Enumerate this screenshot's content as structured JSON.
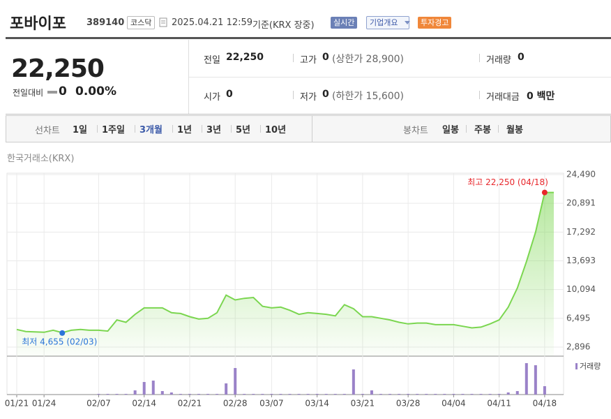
{
  "header": {
    "name": "포바이포",
    "code": "389140",
    "market": "코스닥",
    "datetime": "2025.04.21 12:59",
    "basis": "기준(KRX 장중)",
    "buttons": [
      "실시간",
      "기업개요",
      "투자경고"
    ]
  },
  "summary": {
    "price": "22,250",
    "change_label": "전일대비",
    "change": "0",
    "change_rate": "0.00%",
    "rows": [
      [
        {
          "label": "전일",
          "value": "22,250"
        },
        {
          "label": "고가",
          "value": "0",
          "note": "(상한가 28,900)"
        },
        {
          "label": "거래량",
          "value": "0"
        }
      ],
      [
        {
          "label": "시가",
          "value": "0"
        },
        {
          "label": "저가",
          "value": "0",
          "note": "(하한가 15,600)"
        },
        {
          "label": "거래대금",
          "value": "0 백만"
        }
      ]
    ]
  },
  "tabs": {
    "line_label": "선차트",
    "line_periods": [
      "1일",
      "1주일",
      "3개월",
      "1년",
      "3년",
      "5년",
      "10년"
    ],
    "selected": "3개월",
    "candle_label": "봉차트",
    "candle_periods": [
      "일봉",
      "주봉",
      "월봉"
    ]
  },
  "chart_data": {
    "type": "line",
    "source": "한국거래소(KRX)",
    "categories": [
      "01/21",
      null,
      null,
      "01/24",
      null,
      null,
      null,
      null,
      null,
      "02/07",
      null,
      null,
      null,
      null,
      "02/14",
      null,
      null,
      null,
      null,
      "02/21",
      null,
      null,
      null,
      null,
      "02/28",
      null,
      null,
      null,
      "03/07",
      null,
      null,
      null,
      null,
      "03/14",
      null,
      null,
      null,
      null,
      "03/21",
      null,
      null,
      null,
      null,
      "03/28",
      null,
      null,
      null,
      null,
      "04/04",
      null,
      null,
      null,
      null,
      "04/11",
      null,
      null,
      null,
      null,
      "04/18",
      null
    ],
    "values": [
      5100,
      4850,
      4800,
      4750,
      5000,
      4700,
      5000,
      5100,
      5000,
      5000,
      4900,
      6300,
      6000,
      7000,
      7800,
      7800,
      7800,
      7200,
      7100,
      6700,
      6400,
      6500,
      7200,
      9400,
      8800,
      9000,
      9100,
      8000,
      7800,
      7900,
      7500,
      7000,
      7200,
      7100,
      7000,
      6800,
      8200,
      7700,
      6700,
      6700,
      6500,
      6300,
      6000,
      5800,
      5900,
      5900,
      5700,
      5700,
      5700,
      5500,
      5300,
      5400,
      5800,
      6300,
      7900,
      10300,
      13600,
      17300,
      22250,
      22250
    ],
    "color": "#7bd650",
    "ylim": [
      1760,
      24490
    ],
    "yticks": [
      {
        "value": 2896,
        "label": "2,896"
      },
      {
        "value": 6495,
        "label": "6,495"
      },
      {
        "value": 10094,
        "label": "10,094"
      },
      {
        "value": 13693,
        "label": "13,693"
      },
      {
        "value": 17292,
        "label": "17,292"
      },
      {
        "value": 20891,
        "label": "20,891"
      },
      {
        "value": 24490,
        "label": "24,490"
      }
    ],
    "grid": true,
    "annotations": [
      {
        "text": "최고 22,250 (04/18)",
        "value": 22250,
        "kind": "max",
        "color": "#e8262b"
      },
      {
        "text": "최저 4,655 (02/03)",
        "value": 4655,
        "kind": "min",
        "color": "#2a74d9"
      }
    ],
    "volume": {
      "name": "거래량",
      "color": "#9a82c8",
      "values": [
        0,
        0,
        0,
        0,
        0,
        0,
        0,
        0,
        0,
        10000,
        10000,
        10000,
        10000,
        60000,
        180000,
        200000,
        50000,
        30000,
        10000,
        10000,
        10000,
        10000,
        10000,
        160000,
        380000,
        10000,
        10000,
        10000,
        10000,
        10000,
        10000,
        10000,
        10000,
        10000,
        10000,
        10000,
        10000,
        360000,
        10000,
        60000,
        10000,
        10000,
        10000,
        10000,
        10000,
        10000,
        10000,
        10000,
        10000,
        10000,
        10000,
        10000,
        10000,
        10000,
        30000,
        50000,
        450000,
        420000,
        120000,
        0
      ]
    }
  }
}
